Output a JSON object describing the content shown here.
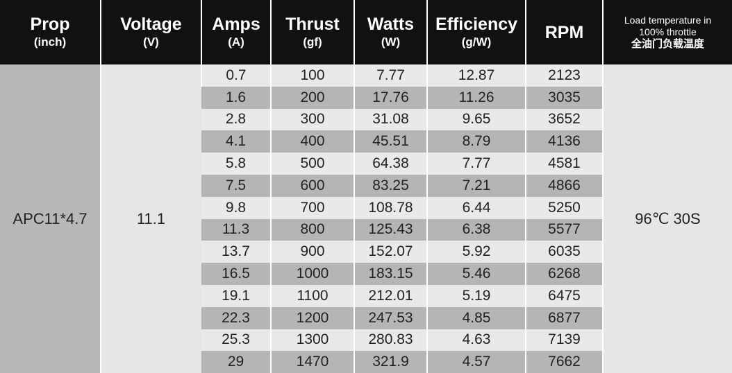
{
  "header": {
    "columns": [
      {
        "lines": [
          "Prop",
          "(inch)"
        ]
      },
      {
        "lines": [
          "Voltage",
          "(V)"
        ]
      },
      {
        "lines": [
          "Amps",
          "(A)"
        ]
      },
      {
        "lines": [
          "Thrust",
          "(gf)"
        ]
      },
      {
        "lines": [
          "Watts",
          "(W)"
        ]
      },
      {
        "lines": [
          "Efficiency",
          "(g/W)"
        ]
      },
      {
        "lines": [
          "RPM"
        ]
      },
      {
        "lines": [
          "Load temperature in",
          "100% throttle",
          "全油门负载温度"
        ]
      }
    ]
  },
  "table": {
    "prop": "APC11*4.7",
    "voltage": "11.1",
    "load_temp": "96℃ 30S",
    "rows": [
      [
        "0.7",
        "100",
        "7.77",
        "12.87",
        "2123"
      ],
      [
        "1.6",
        "200",
        "17.76",
        "11.26",
        "3035"
      ],
      [
        "2.8",
        "300",
        "31.08",
        "9.65",
        "3652"
      ],
      [
        "4.1",
        "400",
        "45.51",
        "8.79",
        "4136"
      ],
      [
        "5.8",
        "500",
        "64.38",
        "7.77",
        "4581"
      ],
      [
        "7.5",
        "600",
        "83.25",
        "7.21",
        "4866"
      ],
      [
        "9.8",
        "700",
        "108.78",
        "6.44",
        "5250"
      ],
      [
        "11.3",
        "800",
        "125.43",
        "6.38",
        "5577"
      ],
      [
        "13.7",
        "900",
        "152.07",
        "5.92",
        "6035"
      ],
      [
        "16.5",
        "1000",
        "183.15",
        "5.46",
        "6268"
      ],
      [
        "19.1",
        "1100",
        "212.01",
        "5.19",
        "6475"
      ],
      [
        "22.3",
        "1200",
        "247.53",
        "4.85",
        "6877"
      ],
      [
        "25.3",
        "1300",
        "280.83",
        "4.63",
        "7139"
      ],
      [
        "29",
        "1470",
        "321.9",
        "4.57",
        "7662"
      ]
    ]
  }
}
